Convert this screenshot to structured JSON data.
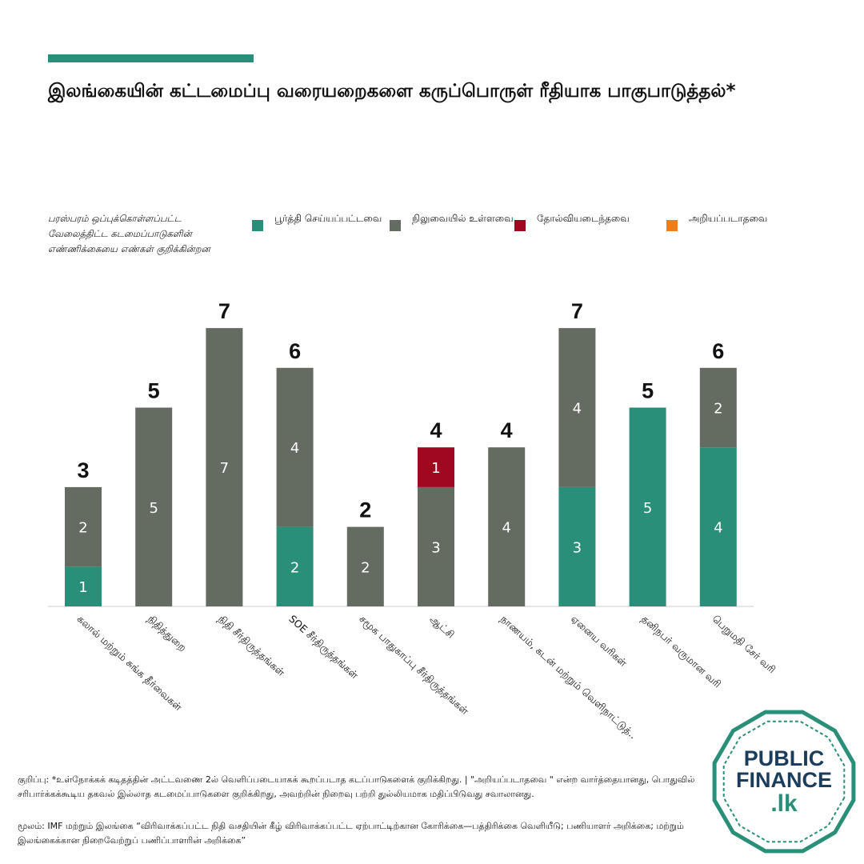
{
  "header": {
    "title": "இலங்கையின் கட்டமைப்பு வரையறைகளை கருப்பொருள் ரீதியாக பாகுபாடுத்தல்*"
  },
  "chart_data": {
    "type": "stacked-bar",
    "legend_note": "பரஸ்பரம் ஒப்புக்கொள்ளப்பட்ட வேலைத்திட்ட கடமைப்பாடுகளின் எண்ணிக்கையை எண்கள் குறிக்கின்றன",
    "categories": [
      "கலால் மற்றும் சுங்க தீர்வைகள்",
      "நிதித்துறை",
      "நிதி சீர்திருத்தங்கள்",
      "SOE சீர்திருத்தங்கள்",
      "சமூக பாதுகாப்பு சீர்திருத்தங்கள்",
      "ஆட்சி",
      "நாணயம், கடன் மற்றும் வெளிநாட்டுத்..",
      "ஏனைய வரிகள்",
      "தனிநபர் வருமான வரி",
      "பெறுமதி சேர் வரி"
    ],
    "series": [
      {
        "name": "பூர்த்தி செய்யப்பட்டவை",
        "color": "#2a8f78",
        "values": [
          1,
          null,
          null,
          2,
          null,
          null,
          null,
          3,
          5,
          4
        ]
      },
      {
        "name": "நிலுவையில் உள்ளவை",
        "color": "#646b60",
        "values": [
          2,
          5,
          7,
          4,
          2,
          3,
          4,
          4,
          null,
          2
        ]
      },
      {
        "name": "தோல்வியடைந்தவை",
        "color": "#a0081f",
        "values": [
          null,
          null,
          null,
          null,
          null,
          1,
          null,
          null,
          null,
          null
        ]
      },
      {
        "name": "அறியப்படாதவை",
        "color": "#f07d1a",
        "values": [
          null,
          null,
          null,
          null,
          null,
          null,
          null,
          null,
          null,
          null
        ]
      }
    ],
    "totals": [
      3,
      5,
      7,
      6,
      2,
      4,
      4,
      7,
      5,
      6
    ]
  },
  "footer": {
    "note": "குறிப்பு: *உள்நோக்கக் கடிதத்தின் அட்டவணை 2ல் வெளிப்படையாகக் கூறப்படாத கடப்பாடுகளைக் குறிக்கிறது. | \"அறியப்படாதவை \" என்ற வார்த்தையானது, பொதுவில் சரிபார்க்கக்கூடிய தகவல் இல்லாத கடமைப்பாடுகளை குறிக்கிறது, அவற்றின் நிறைவு பற்றி துல்லியமாக மதிப்பிடுவது சவாலானது.",
    "source": "மூலம்: IMF மற்றும் இலங்கை “விரிவாக்கப்பட்ட நிதி வசதியின் கீழ் விரிவாக்கப்பட்ட ஏற்பாட்டிற்கான கோரிக்கை—பத்திரிக்கை வெளியீடு; பணியாளர் அறிக்கை; மற்றும் இலங்கைக்கான நிறைவேற்றுப் பணிப்பாளரின் அறிக்கை”"
  },
  "logo": {
    "line1": "PUBLIC",
    "line2": "FINANCE",
    "line3": ".lk"
  }
}
